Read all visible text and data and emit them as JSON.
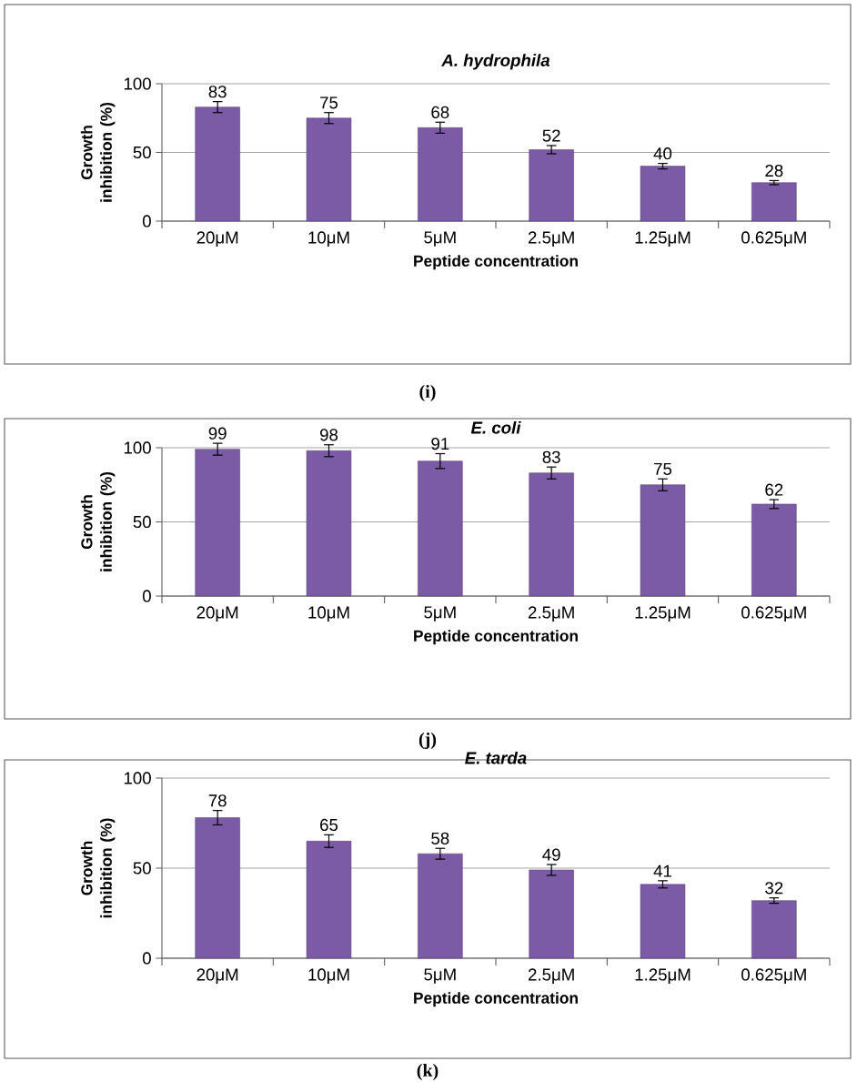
{
  "chart_data": [
    {
      "type": "bar",
      "title": "A. hydrophila",
      "xlabel": "Peptide concentration",
      "ylabel": "Growth inhibition (%)",
      "categories": [
        "20μM",
        "10μM",
        "5μM",
        "2.5μM",
        "1.25μM",
        "0.625μM"
      ],
      "values": [
        83,
        75,
        68,
        52,
        40,
        28
      ],
      "errors": [
        4,
        4,
        4,
        3,
        2,
        1.5
      ],
      "color": "#7b5aa6",
      "ylim": [
        0,
        100
      ],
      "yticks": [
        0,
        50,
        100
      ],
      "grid": "y",
      "data_labels": true,
      "annotations": [
        "(i)"
      ]
    },
    {
      "type": "bar",
      "title": "E. coli",
      "xlabel": "Peptide concentration",
      "ylabel": "Growth inhibition (%)",
      "categories": [
        "20μM",
        "10μM",
        "5μM",
        "2.5μM",
        "1.25μM",
        "0.625μM"
      ],
      "values": [
        99,
        98,
        91,
        83,
        75,
        62
      ],
      "errors": [
        4,
        4,
        5,
        4,
        4,
        3
      ],
      "color": "#7b5aa6",
      "ylim": [
        0,
        100
      ],
      "yticks": [
        0,
        50,
        100
      ],
      "grid": "y",
      "data_labels": true,
      "annotations": [
        "(j)"
      ]
    },
    {
      "type": "bar",
      "title": "E. tarda",
      "xlabel": "Peptide concentration",
      "ylabel": "Growth inhibition (%)",
      "categories": [
        "20μM",
        "10μM",
        "5μM",
        "2.5μM",
        "1.25μM",
        "0.625μM"
      ],
      "values": [
        78,
        65,
        58,
        49,
        41,
        32
      ],
      "errors": [
        4,
        3.5,
        3,
        3,
        2,
        1.5
      ],
      "color": "#7b5aa6",
      "ylim": [
        0,
        100
      ],
      "yticks": [
        0,
        50,
        100
      ],
      "grid": "y",
      "data_labels": true,
      "annotations": [
        "(k)"
      ]
    }
  ]
}
